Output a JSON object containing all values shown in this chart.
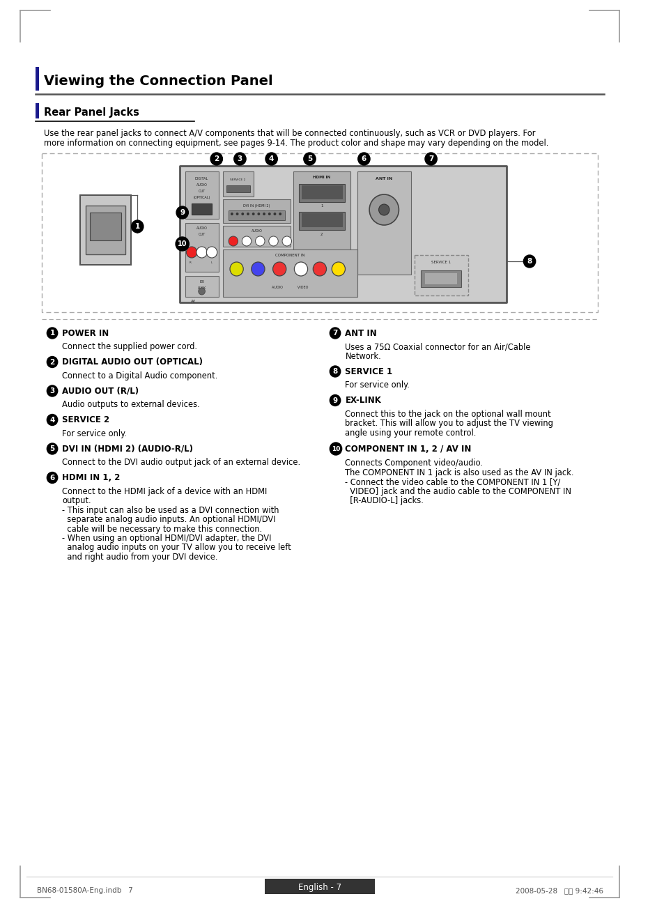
{
  "bg_color": "#ffffff",
  "title": "Viewing the Connection Panel",
  "subtitle": "Rear Panel Jacks",
  "intro_line1": "Use the rear panel jacks to connect A/V components that will be connected continuously, such as VCR or DVD players. For",
  "intro_line2": "more information on connecting equipment, see pages 9-14. The product color and shape may vary depending on the model.",
  "footer_left": "BN68-01580A-Eng.indb   7",
  "footer_right": "2008-05-28   오후 9:42:46",
  "footer_center": "English - 7",
  "ant_body_line1": "Uses a 75Ω Coaxial connector for an Air/Cable",
  "ant_body_line2": "Network.",
  "items_left": [
    {
      "num": "1",
      "title": "POWER IN",
      "body_lines": [
        "Connect the supplied power cord."
      ]
    },
    {
      "num": "2",
      "title": "DIGITAL AUDIO OUT (OPTICAL)",
      "body_lines": [
        "Connect to a Digital Audio component."
      ]
    },
    {
      "num": "3",
      "title": "AUDIO OUT (R/L)",
      "body_lines": [
        "Audio outputs to external devices."
      ]
    },
    {
      "num": "4",
      "title": "SERVICE 2",
      "body_lines": [
        "For service only."
      ]
    },
    {
      "num": "5",
      "title": "DVI IN (HDMI 2) (AUDIO-R/L)",
      "body_lines": [
        "Connect to the DVI audio output jack of an external device."
      ]
    },
    {
      "num": "6",
      "title": "HDMI IN 1, 2",
      "body_lines": [
        "Connect to the HDMI jack of a device with an HDMI",
        "output.",
        "- This input can also be used as a DVI connection with",
        "  separate analog audio inputs. An optional HDMI/DVI",
        "  cable will be necessary to make this connection.",
        "- When using an optional HDMI/DVI adapter, the DVI",
        "  analog audio inputs on your TV allow you to receive left",
        "  and right audio from your DVI device."
      ]
    }
  ],
  "items_right": [
    {
      "num": "7",
      "title": "ANT IN",
      "body_lines": [
        "Uses a 75Ω Coaxial connector for an Air/Cable",
        "Network."
      ]
    },
    {
      "num": "8",
      "title": "SERVICE 1",
      "body_lines": [
        "For service only."
      ]
    },
    {
      "num": "9",
      "title": "EX-LINK",
      "body_lines": [
        "Connect this to the jack on the optional wall mount",
        "bracket. This will allow you to adjust the TV viewing",
        "angle using your remote control."
      ]
    },
    {
      "num": "10",
      "title": "COMPONENT IN 1, 2 / AV IN",
      "body_lines": [
        "Connects Component video/audio.",
        "The COMPONENT IN 1 jack is also used as the AV IN jack.",
        "- Connect the video cable to the COMPONENT IN 1 [Y/",
        "  VIDEO] jack and the audio cable to the COMPONENT IN",
        "  [R-AUDIO-L] jacks."
      ]
    }
  ]
}
